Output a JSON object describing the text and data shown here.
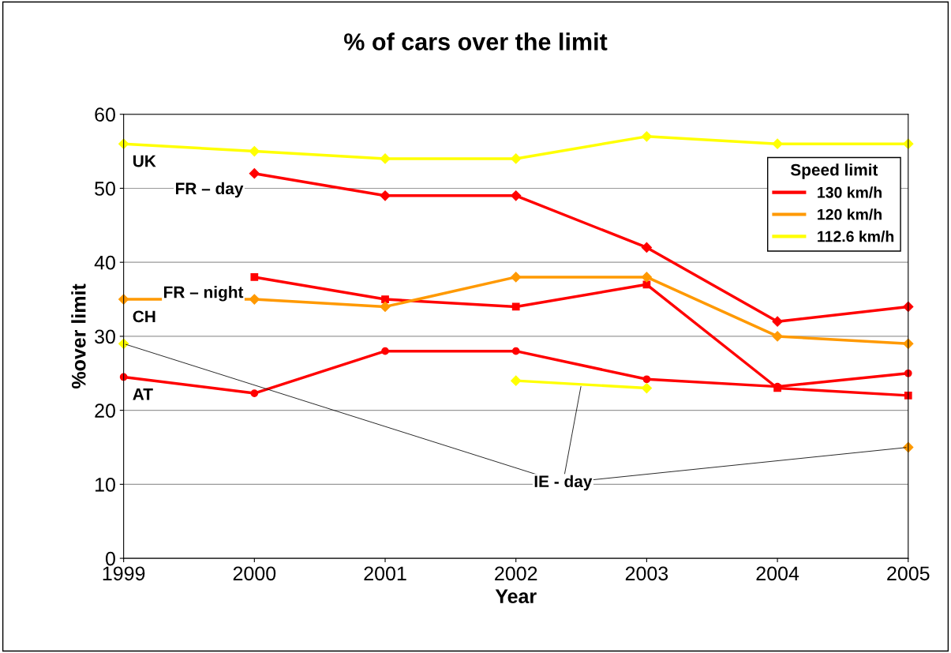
{
  "chart_data": {
    "type": "line",
    "title": "% of cars over the limit",
    "xlabel": "Year",
    "ylabel": "%over limit",
    "x": [
      1999,
      2000,
      2001,
      2002,
      2003,
      2004,
      2005
    ],
    "xlim": [
      1999,
      2005
    ],
    "xticks": [
      1999,
      2000,
      2001,
      2002,
      2003,
      2004,
      2005
    ],
    "ylim": [
      0,
      60
    ],
    "yticks": [
      0,
      10,
      20,
      30,
      40,
      50,
      60
    ],
    "grid": "y",
    "legend": "top right",
    "legend_title": "Speed limit",
    "series": [
      {
        "name": "130 km/h",
        "color": "#ff0000",
        "values": [
          null,
          null,
          null,
          null,
          null,
          null,
          null
        ]
      },
      {
        "name": "120 km/h",
        "color": "#ff9900",
        "values": [
          null,
          null,
          null,
          null,
          null,
          null,
          null
        ]
      },
      {
        "name": "112.6 km/h",
        "color": "#ffff00",
        "values": [
          null,
          null,
          null,
          null,
          null,
          null,
          null
        ]
      },
      {
        "name": "UK",
        "color": "#ffff00",
        "marker": "diamond",
        "values": [
          56,
          55,
          54,
          54,
          57,
          56,
          56
        ]
      },
      {
        "name": "FR – day",
        "color": "#ff0000",
        "marker": "diamond",
        "values": [
          null,
          52,
          49,
          49,
          42,
          32,
          34
        ]
      },
      {
        "name": "FR – night",
        "color": "#ff0000",
        "marker": "square",
        "values": [
          null,
          38,
          35,
          34,
          37,
          23,
          22
        ]
      },
      {
        "name": "CH",
        "color": "#ff9900",
        "marker": "diamond",
        "values": [
          35,
          35,
          34,
          38,
          38,
          30,
          29
        ]
      },
      {
        "name": "AT",
        "color": "#ff0000",
        "marker": "circle",
        "values": [
          24.5,
          22.3,
          28,
          28,
          24.2,
          23.2,
          25
        ]
      },
      {
        "color": "#ffff00",
        "marker": "diamond",
        "values": [
          29,
          null,
          null,
          24,
          23,
          null,
          null
        ]
      },
      {
        "color": "#ff9900",
        "marker": "diamond",
        "values": [
          null,
          null,
          null,
          null,
          null,
          null,
          15
        ]
      }
    ],
    "annotations": [
      {
        "text": "IE - day",
        "x": 2005,
        "y": 15
      }
    ]
  }
}
